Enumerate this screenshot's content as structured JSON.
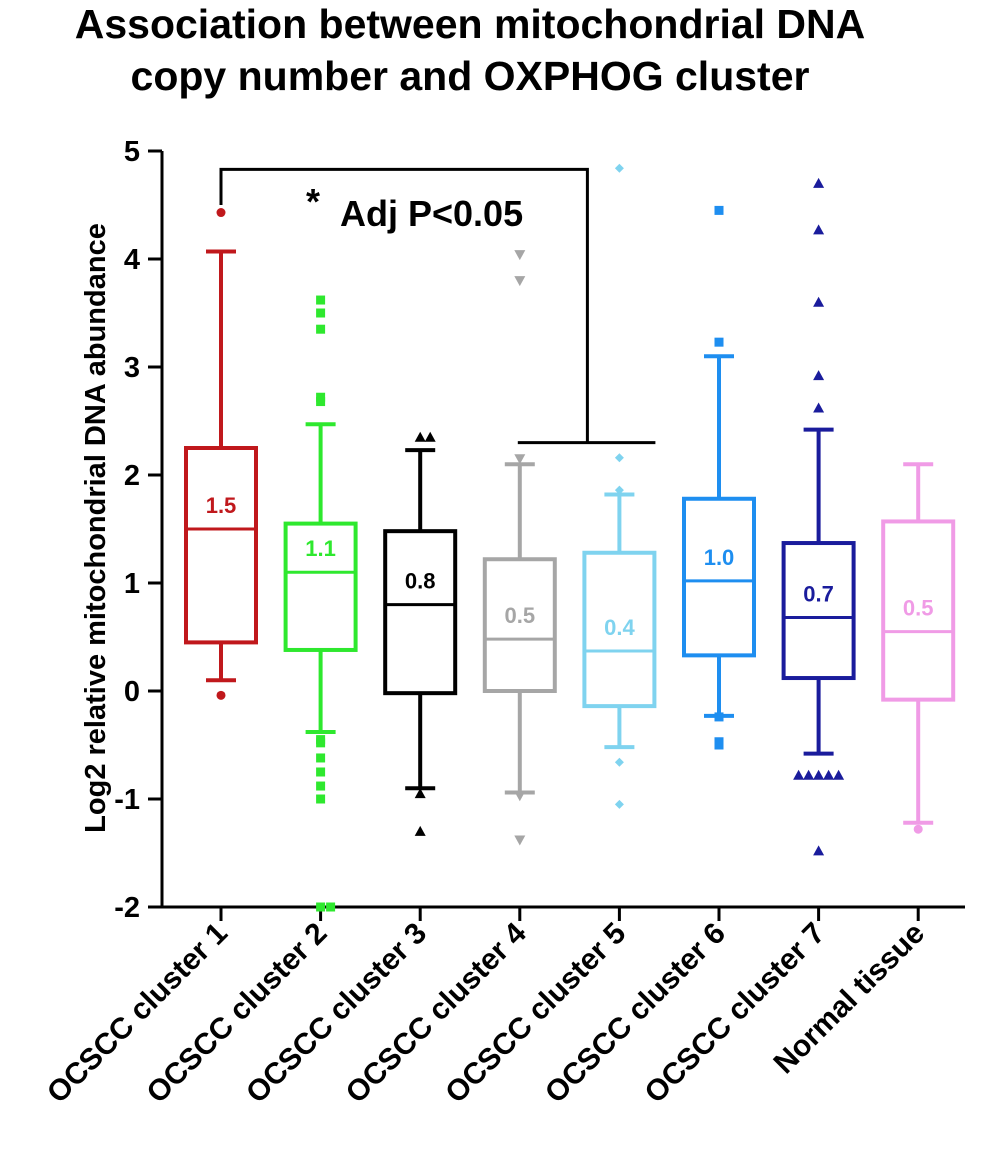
{
  "chart_data": {
    "type": "box",
    "title_lines": [
      "Association between mitochondrial DNA",
      "copy number and OXPHOG cluster"
    ],
    "ylabel": "Log2 relative mitochondrial DNA abundance",
    "xlabel": "",
    "ylim": [
      -2,
      5
    ],
    "yticks": [
      "-2",
      "-1",
      "0",
      "1",
      "2",
      "3",
      "4",
      "5"
    ],
    "grid": false,
    "annotation": {
      "star": "*",
      "text": "Adj P<0.05",
      "from_category": 0,
      "to_category": 4
    },
    "series": [
      {
        "category": "OCSCC cluster 1",
        "color": "#c0181c",
        "marker": "circle",
        "q1": 0.45,
        "median": 1.5,
        "q3": 2.25,
        "whisker_low": 0.1,
        "whisker_high": 4.07,
        "label": "1.5",
        "outliers": [
          4.43,
          -0.04
        ]
      },
      {
        "category": "OCSCC cluster 2",
        "color": "#2ee82e",
        "marker": "square",
        "q1": 0.38,
        "median": 1.1,
        "q3": 1.55,
        "whisker_low": -0.38,
        "whisker_high": 2.47,
        "label": "1.1",
        "outliers": [
          3.62,
          3.5,
          3.35,
          2.72,
          2.68,
          -0.45,
          -0.48,
          -0.62,
          -0.75,
          -0.88,
          -1.0,
          -2.0,
          -2.0
        ]
      },
      {
        "category": "OCSCC cluster 3",
        "color": "#000000",
        "marker": "triangle",
        "q1": -0.02,
        "median": 0.8,
        "q3": 1.48,
        "whisker_low": -0.9,
        "whisker_high": 2.23,
        "label": "0.8",
        "outliers": [
          2.35,
          2.35,
          -0.95,
          -1.3
        ]
      },
      {
        "category": "OCSCC cluster 4",
        "color": "#a6a6a6",
        "marker": "triangle-down",
        "q1": 0.0,
        "median": 0.48,
        "q3": 1.22,
        "whisker_low": -0.94,
        "whisker_high": 2.1,
        "label": "0.5",
        "outliers": [
          4.04,
          3.8,
          2.15,
          -0.97,
          -1.38
        ]
      },
      {
        "category": "OCSCC cluster 5",
        "color": "#7fd3ef",
        "marker": "diamond",
        "q1": -0.14,
        "median": 0.37,
        "q3": 1.28,
        "whisker_low": -0.52,
        "whisker_high": 1.82,
        "label": "0.4",
        "outliers": [
          4.84,
          2.16,
          1.86,
          -0.66,
          -1.05
        ]
      },
      {
        "category": "OCSCC cluster 6",
        "color": "#1e8ef0",
        "marker": "square",
        "q1": 0.33,
        "median": 1.02,
        "q3": 1.78,
        "whisker_low": -0.23,
        "whisker_high": 3.1,
        "label": "1.0",
        "outliers": [
          4.45,
          3.23,
          -0.24,
          -0.47,
          -0.5
        ]
      },
      {
        "category": "OCSCC cluster 7",
        "color": "#1a1c9c",
        "marker": "triangle",
        "q1": 0.12,
        "median": 0.68,
        "q3": 1.37,
        "whisker_low": -0.58,
        "whisker_high": 2.42,
        "label": "0.7",
        "outliers": [
          4.7,
          4.27,
          3.6,
          2.92,
          2.62,
          -0.78,
          -0.78,
          -0.78,
          -0.78,
          -0.78,
          -1.48
        ]
      },
      {
        "category": "Normal tissue",
        "color": "#f09be6",
        "marker": "circle",
        "q1": -0.08,
        "median": 0.55,
        "q3": 1.57,
        "whisker_low": -1.22,
        "whisker_high": 2.1,
        "label": "0.5",
        "outliers": [
          -1.28
        ]
      }
    ]
  }
}
